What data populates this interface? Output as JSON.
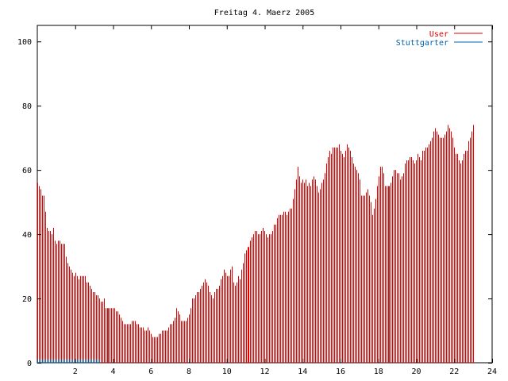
{
  "chart_data": {
    "type": "bar",
    "title": "Freitag 4. Maerz 2005",
    "xlabel": "",
    "ylabel": "",
    "xlim": [
      0,
      24
    ],
    "ylim": [
      0,
      105
    ],
    "x_ticks": [
      2,
      4,
      6,
      8,
      10,
      12,
      14,
      16,
      18,
      20,
      22,
      24
    ],
    "y_ticks": [
      0,
      20,
      40,
      60,
      80,
      100
    ],
    "legend_position": "top-right",
    "grid": false,
    "colors": {
      "user": "#e00000",
      "stuttgarter": "#0060ad"
    },
    "series": [
      {
        "name": "User",
        "interval_hours": 0.0833,
        "values": [
          56,
          55,
          54,
          52,
          52,
          47,
          42,
          41,
          41,
          40,
          42,
          38,
          37,
          38,
          38,
          37,
          37,
          37,
          33,
          31,
          30,
          29,
          28,
          27,
          28,
          27,
          26,
          27,
          27,
          27,
          27,
          25,
          25,
          24,
          23,
          22,
          22,
          21,
          21,
          20,
          19,
          19,
          20,
          17,
          17,
          17,
          17,
          17,
          17,
          17,
          16,
          16,
          15,
          14,
          13,
          12,
          12,
          12,
          12,
          12,
          13,
          13,
          13,
          12,
          12,
          11,
          11,
          11,
          10,
          10,
          11,
          10,
          9,
          8,
          8,
          8,
          8,
          9,
          9,
          10,
          10,
          10,
          10,
          11,
          12,
          12,
          13,
          14,
          17,
          16,
          15,
          13,
          13,
          13,
          13,
          14,
          15,
          17,
          20,
          20,
          21,
          22,
          22,
          23,
          24,
          25,
          26,
          25,
          24,
          22,
          21,
          20,
          22,
          23,
          23,
          24,
          26,
          27,
          29,
          28,
          27,
          27,
          29,
          30,
          25,
          24,
          25,
          27,
          26,
          29,
          31,
          34,
          35,
          36,
          36,
          38,
          39,
          40,
          41,
          41,
          40,
          40,
          41,
          42,
          41,
          40,
          39,
          40,
          40,
          41,
          43,
          43,
          45,
          46,
          46,
          46,
          47,
          47,
          46,
          47,
          48,
          48,
          51,
          54,
          57,
          61,
          58,
          56,
          57,
          56,
          57,
          55,
          56,
          55,
          57,
          58,
          57,
          55,
          53,
          54,
          56,
          57,
          59,
          62,
          64,
          66,
          65,
          67,
          67,
          67,
          67,
          68,
          66,
          65,
          64,
          66,
          68,
          67,
          66,
          64,
          62,
          61,
          60,
          59,
          57,
          52,
          52,
          52,
          53,
          54,
          52,
          50,
          46,
          48,
          51,
          55,
          58,
          61,
          61,
          59,
          55,
          55,
          55,
          55,
          56,
          58,
          60,
          60,
          59,
          59,
          57,
          58,
          59,
          62,
          63,
          63,
          64,
          64,
          63,
          62,
          63,
          65,
          64,
          63,
          66,
          66,
          67,
          67,
          68,
          69,
          70,
          72,
          73,
          72,
          71,
          70,
          70,
          70,
          71,
          72,
          74,
          73,
          72,
          70,
          67,
          65,
          65,
          63,
          62,
          63,
          65,
          66,
          66,
          69,
          70,
          72,
          74
        ]
      },
      {
        "name": "Stuttgarter",
        "interval_hours": 0.0833,
        "values": [
          1,
          1,
          1,
          1,
          1,
          1,
          1,
          1,
          1,
          1,
          1,
          1,
          1,
          1,
          1,
          1,
          1,
          1,
          1,
          1,
          1,
          1,
          1,
          1,
          1,
          1,
          1,
          1,
          1,
          1,
          1,
          1,
          1,
          1,
          1,
          1,
          1,
          1,
          1,
          1,
          0,
          0,
          0,
          0,
          0,
          0,
          0,
          0,
          0,
          0,
          0,
          0,
          0,
          0,
          0,
          0,
          0,
          0,
          0,
          0,
          0,
          0,
          0,
          0,
          0,
          0,
          0,
          0,
          0,
          0,
          0,
          0,
          0,
          0,
          0,
          0,
          0,
          0,
          0,
          0,
          0,
          0,
          0,
          0,
          0,
          0,
          0,
          0,
          0,
          0,
          0,
          0,
          0,
          0,
          0,
          0,
          0,
          0,
          0,
          0,
          0,
          0,
          0,
          0,
          0,
          0,
          0,
          0,
          0,
          0,
          0,
          0,
          0,
          0,
          0,
          0,
          0,
          0,
          0,
          0,
          0,
          0,
          0,
          0,
          0,
          0,
          0,
          0,
          0,
          0,
          0,
          0,
          0,
          0,
          0,
          0,
          0,
          0,
          0,
          0,
          0,
          0,
          0,
          0,
          0,
          0,
          0,
          0,
          0,
          0,
          0,
          0,
          0,
          0,
          0,
          0,
          0,
          0,
          0,
          0,
          0,
          0,
          0,
          0,
          0,
          0,
          0,
          0,
          0,
          0,
          0,
          0,
          0,
          0,
          0,
          0,
          0,
          0,
          0,
          0,
          0,
          0,
          0,
          0,
          0,
          0,
          0,
          0,
          0,
          0,
          0,
          0,
          0,
          0,
          0,
          0,
          0,
          0,
          0,
          0,
          0,
          0,
          0,
          0,
          0,
          0,
          0,
          0,
          0,
          0,
          0,
          0,
          0,
          0,
          0,
          0,
          0,
          0,
          0,
          0,
          0,
          0,
          0,
          0,
          0,
          0,
          0,
          0,
          0,
          0,
          0,
          0,
          0,
          0,
          0,
          0,
          0,
          0,
          0,
          0,
          0,
          0,
          0,
          0,
          0,
          0,
          0,
          0,
          0,
          0,
          0,
          0,
          0,
          0,
          0,
          0,
          0,
          0,
          0,
          0,
          0,
          0,
          0,
          0,
          0,
          0,
          0,
          0,
          0,
          0,
          0,
          0,
          0,
          0,
          0,
          0,
          0,
          0,
          0,
          0,
          0,
          0,
          0,
          0,
          0,
          0,
          0,
          0,
          0,
          0,
          0,
          0,
          0,
          0,
          0,
          0,
          0,
          0,
          0,
          0
        ]
      }
    ]
  }
}
